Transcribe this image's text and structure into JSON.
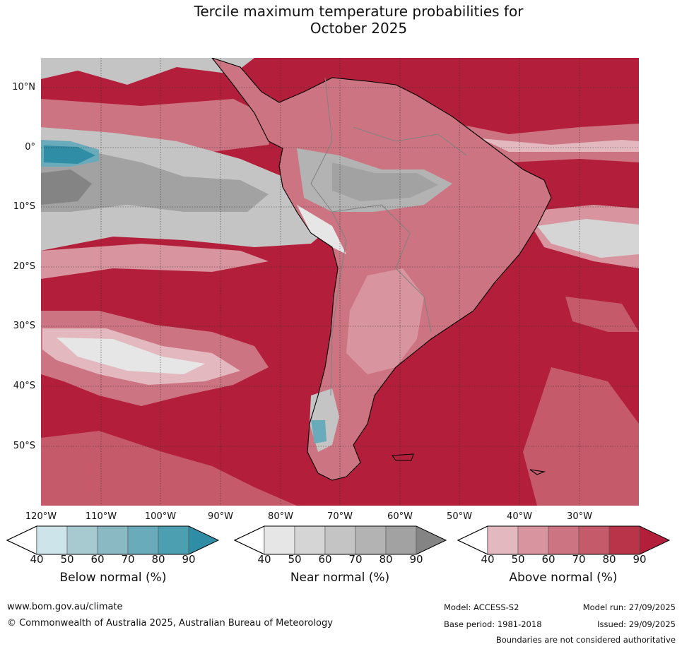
{
  "title_line1": "Tercile maximum temperature probabilities for",
  "title_line2": "October 2025",
  "lat_labels": [
    "10°N",
    "0°",
    "10°S",
    "20°S",
    "30°S",
    "40°S",
    "50°S"
  ],
  "lon_labels": [
    "120°W",
    "110°W",
    "100°W",
    "90°W",
    "80°W",
    "70°W",
    "60°W",
    "50°W",
    "40°W",
    "30°W"
  ],
  "colorbars": [
    {
      "title": "Below normal (%)",
      "ticks": [
        "40",
        "50",
        "60",
        "70",
        "80",
        "90"
      ],
      "colors": [
        "#cde4ea",
        "#a7c9d0",
        "#8ab9c3",
        "#6aabbb",
        "#4b9fb1",
        "#2f8ea5"
      ]
    },
    {
      "title": "Near normal (%)",
      "ticks": [
        "40",
        "50",
        "60",
        "70",
        "80",
        "90"
      ],
      "colors": [
        "#e6e6e6",
        "#d5d5d5",
        "#c4c4c4",
        "#b3b3b3",
        "#a2a2a2",
        "#848484"
      ]
    },
    {
      "title": "Above normal (%)",
      "ticks": [
        "40",
        "50",
        "60",
        "70",
        "80",
        "90"
      ],
      "colors": [
        "#e3b8bf",
        "#d8959f",
        "#cd7482",
        "#c45a6a",
        "#b93448",
        "#b31f3b"
      ]
    }
  ],
  "footer": {
    "website": "www.bom.gov.au/climate",
    "copyright": "© Commonwealth of Australia 2025, Australian Bureau of Meteorology",
    "model": "Model: ACCESS-S2",
    "model_run": "Model run: 27/09/2025",
    "base_period": "Base period: 1981-2018",
    "issued": "Issued: 29/09/2025",
    "boundaries": "Boundaries are not considered authoritative"
  }
}
